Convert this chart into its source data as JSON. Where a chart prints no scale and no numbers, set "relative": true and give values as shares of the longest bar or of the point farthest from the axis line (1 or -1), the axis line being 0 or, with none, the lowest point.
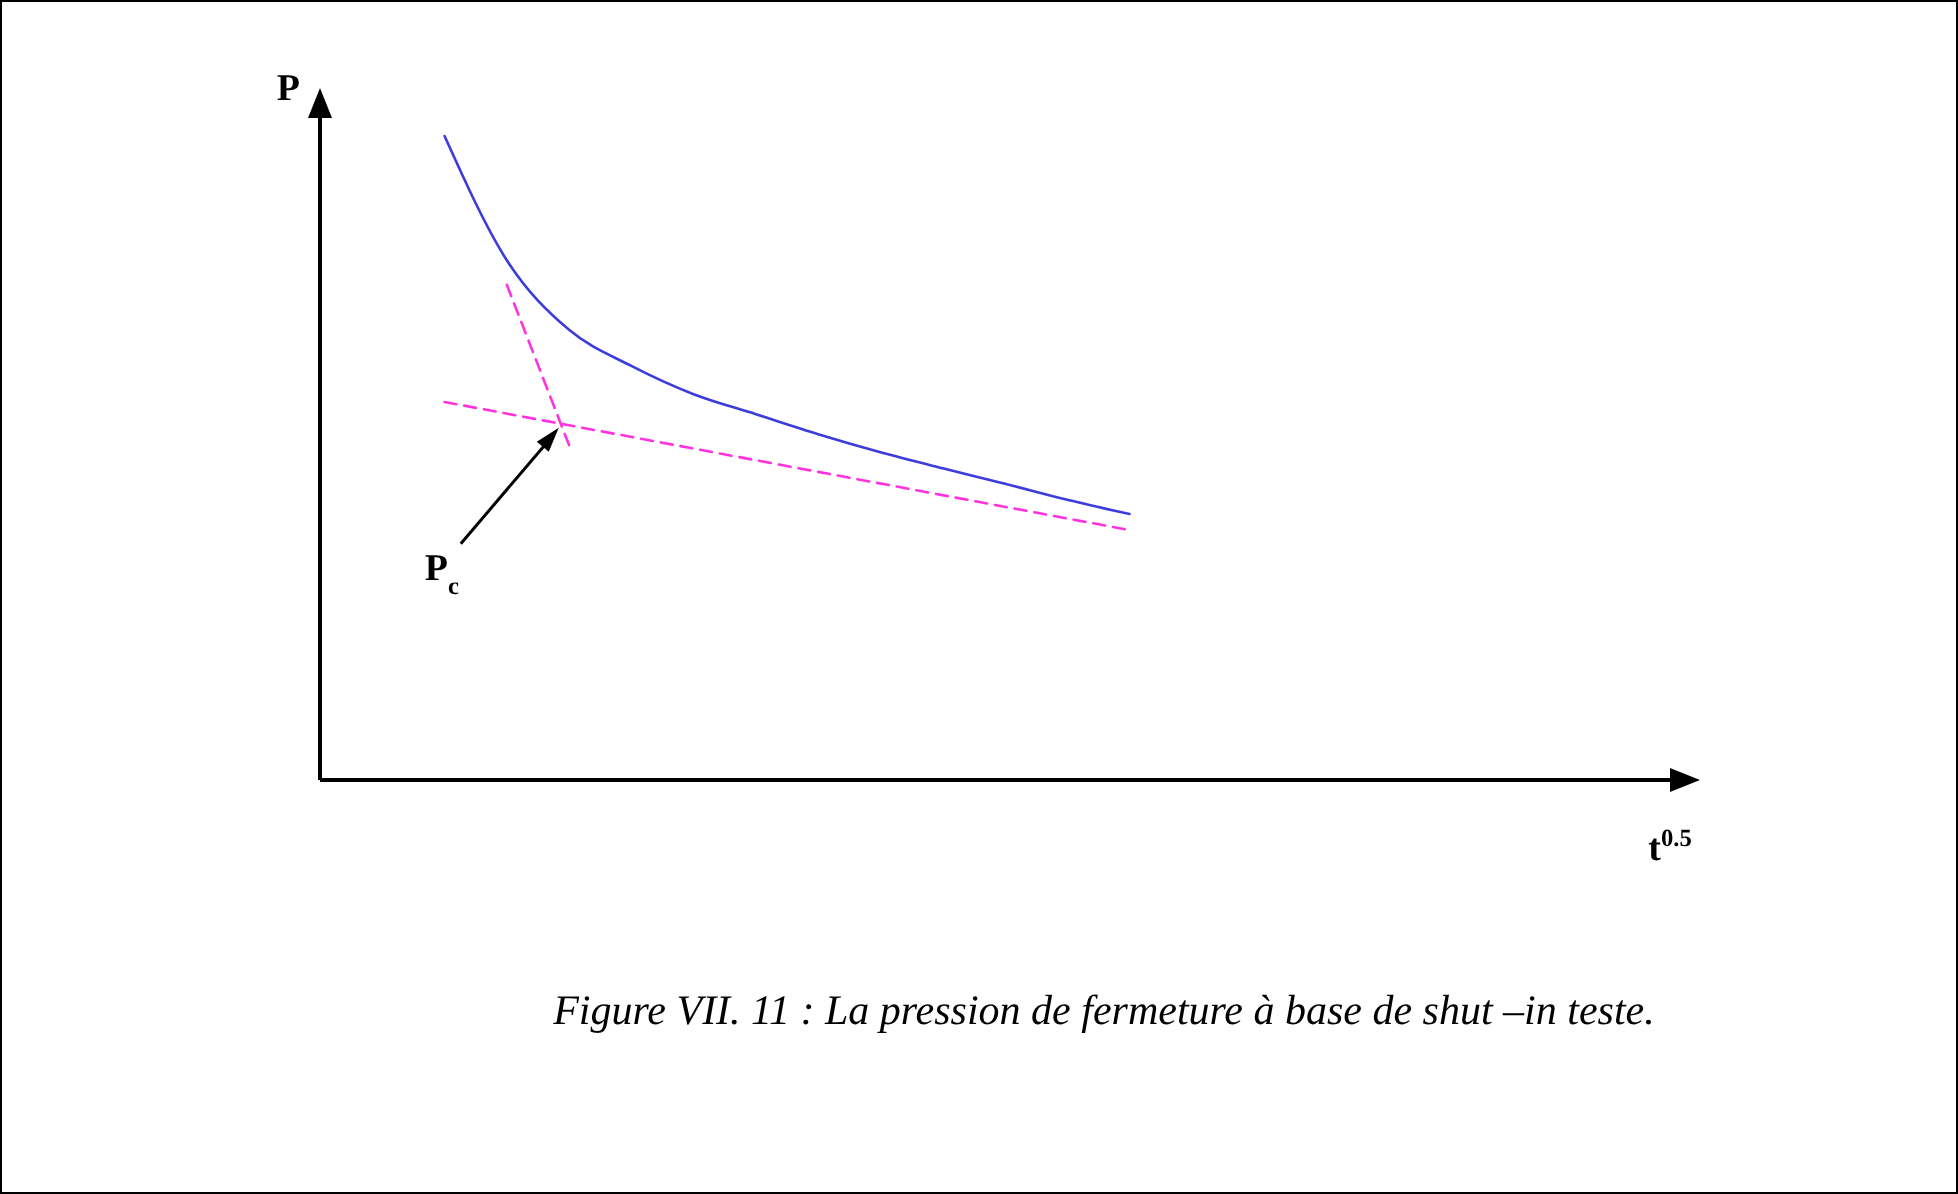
{
  "chart_data": {
    "type": "line",
    "relative": true,
    "xlabel": "t$^{0.5}$",
    "ylabel": "P",
    "categories": [
      null,
      null,
      null,
      null,
      null,
      null,
      null,
      null,
      null,
      null,
      null,
      null,
      null,
      null,
      null,
      null,
      null,
      null,
      null,
      null,
      null,
      null,
      null
    ],
    "series": [
      {
        "color": "#3c3cdc",
        "line_style": "solid",
        "values": [
          null,
          null,
          1.0,
          0.807,
          0.699,
          0.643,
          0.599,
          0.568,
          0.537,
          0.509,
          0.484,
          0.46,
          0.435,
          0.413,
          null,
          null,
          null,
          null,
          null,
          null,
          null,
          null,
          null
        ]
      },
      {
        "color": "#ff33dd",
        "line_style": "dashed",
        "values": [
          null,
          null,
          null,
          0.769,
          0.52,
          null,
          null,
          null,
          null,
          null,
          null,
          null,
          null,
          null,
          null,
          null,
          null,
          null,
          null,
          null,
          null,
          null,
          null
        ]
      },
      {
        "color": "#ff33dd",
        "line_style": "dashed",
        "values": [
          null,
          null,
          0.587,
          null,
          null,
          null,
          null,
          null,
          null,
          null,
          null,
          null,
          null,
          0.388,
          null,
          null,
          null,
          null,
          null,
          null,
          null,
          null,
          null
        ]
      }
    ],
    "annotations": [
      "P$_{c}$",
      "Figure VII. 11 : La pression de fermeture à base de shut –in teste."
    ]
  }
}
